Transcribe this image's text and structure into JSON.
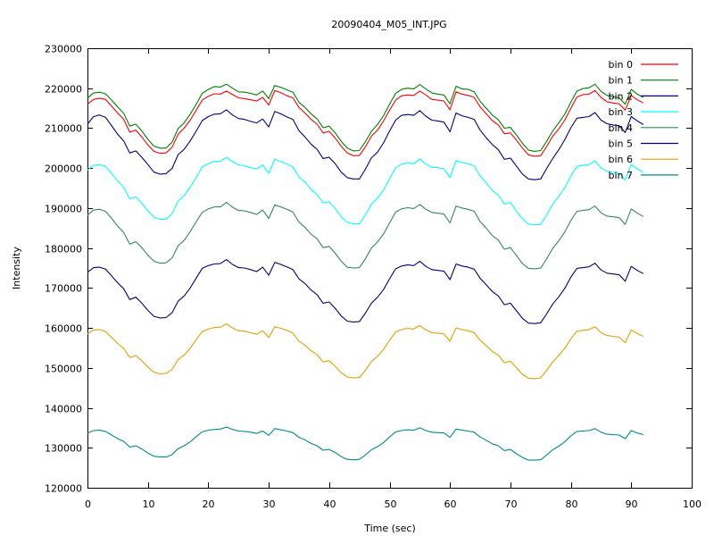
{
  "chart_data": {
    "type": "line",
    "title": "20090404_M05_INT.JPG",
    "xlabel": "Time (sec)",
    "ylabel": "Intensity",
    "xlim": [
      0,
      100
    ],
    "ylim": [
      120000,
      230000
    ],
    "xticks": [
      0,
      10,
      20,
      30,
      40,
      50,
      60,
      70,
      80,
      90,
      100
    ],
    "yticks": [
      120000,
      130000,
      140000,
      150000,
      160000,
      170000,
      180000,
      190000,
      200000,
      210000,
      220000,
      230000
    ],
    "grid": false,
    "legend_position": "top-right",
    "x": [
      0,
      1,
      2,
      3,
      4,
      5,
      6,
      7,
      8,
      9,
      10,
      11,
      12,
      13,
      14,
      15,
      16,
      17,
      18,
      19,
      20,
      21,
      22,
      23,
      24,
      25,
      26,
      27,
      28,
      29,
      30,
      31,
      32,
      33,
      34,
      35,
      36,
      37,
      38,
      39,
      40,
      41,
      42,
      43,
      44,
      45,
      46,
      47,
      48,
      49,
      50,
      51,
      52,
      53,
      54,
      55,
      56,
      57,
      58,
      59,
      60,
      61,
      62,
      63,
      64,
      65,
      66,
      67,
      68,
      69,
      70,
      71,
      72,
      73,
      74,
      75,
      76,
      77,
      78,
      79,
      80,
      81,
      82,
      83,
      84,
      85,
      86,
      87,
      88,
      89,
      90,
      91,
      92
    ],
    "series": [
      {
        "name": "bin 0",
        "color": "#ff0000",
        "values": [
          216000,
          217200,
          217500,
          217200,
          215500,
          213800,
          212200,
          209000,
          209500,
          207800,
          205800,
          204200,
          203700,
          203800,
          205200,
          208500,
          210000,
          212000,
          214500,
          217000,
          218000,
          218600,
          218500,
          219300,
          218400,
          217600,
          217400,
          217100,
          216800,
          217700,
          215800,
          219400,
          218900,
          218100,
          217600,
          215200,
          213800,
          212200,
          211000,
          208800,
          209200,
          207500,
          205500,
          203800,
          203100,
          203200,
          205300,
          208000,
          209500,
          211800,
          214500,
          217000,
          218100,
          218300,
          218200,
          219300,
          218300,
          217200,
          217000,
          216800,
          214600,
          219100,
          218500,
          218200,
          217700,
          215300,
          213600,
          211900,
          210800,
          208600,
          208800,
          207000,
          205000,
          203300,
          203000,
          203100,
          205400,
          208000,
          209800,
          212000,
          215000,
          217800,
          218400,
          218500,
          219400,
          217700,
          216600,
          216300,
          216100,
          214500,
          218200,
          217100,
          216300
        ]
      },
      {
        "name": "bin 1",
        "color": "#008000",
        "values": [
          217500,
          218800,
          219000,
          218600,
          217000,
          215300,
          213700,
          210500,
          211000,
          209300,
          207200,
          205500,
          205000,
          205000,
          206500,
          209900,
          211300,
          213500,
          216000,
          218700,
          219700,
          220400,
          220300,
          221000,
          220000,
          219100,
          219000,
          218700,
          218300,
          219300,
          217400,
          220700,
          220200,
          219600,
          219000,
          216500,
          215200,
          213600,
          212300,
          210100,
          210500,
          208800,
          206700,
          205000,
          204300,
          204400,
          206600,
          209200,
          210900,
          213100,
          216000,
          218700,
          219700,
          220000,
          219800,
          220900,
          219800,
          218800,
          218500,
          218300,
          216100,
          220500,
          219800,
          219700,
          219100,
          216700,
          215000,
          213300,
          212100,
          210000,
          210200,
          208300,
          206200,
          204500,
          204200,
          204400,
          206700,
          209300,
          211300,
          213500,
          216500,
          219300,
          219900,
          220100,
          221000,
          219200,
          218200,
          217800,
          217600,
          216000,
          219700,
          218500,
          217700
        ]
      },
      {
        "name": "bin 2",
        "color": "#00008b",
        "values": [
          211000,
          212900,
          213300,
          212700,
          210600,
          208500,
          206800,
          203800,
          204300,
          202700,
          200900,
          199000,
          198500,
          198600,
          199900,
          203400,
          204700,
          206800,
          209300,
          211900,
          212900,
          213500,
          213600,
          214600,
          213300,
          212400,
          212200,
          211700,
          211300,
          212300,
          210300,
          214200,
          213600,
          212800,
          212200,
          209400,
          207800,
          206000,
          204700,
          202400,
          202700,
          201100,
          199000,
          197600,
          197300,
          197300,
          199700,
          202600,
          204000,
          206300,
          209300,
          212000,
          213200,
          213400,
          213200,
          214400,
          213000,
          212000,
          211800,
          211500,
          209100,
          213800,
          213100,
          212700,
          212200,
          209500,
          207600,
          205900,
          204600,
          202200,
          202500,
          200500,
          198500,
          197300,
          197100,
          197300,
          199900,
          202400,
          204600,
          207100,
          210100,
          212500,
          212700,
          212900,
          213900,
          212000,
          211100,
          210800,
          210600,
          208900,
          212900,
          211800,
          210900
        ]
      },
      {
        "name": "bin 3",
        "color": "#00ffff",
        "values": [
          199500,
          200700,
          200900,
          200400,
          198600,
          196800,
          195200,
          192300,
          192800,
          191200,
          189300,
          187700,
          187200,
          187200,
          188600,
          191800,
          193100,
          195200,
          197700,
          200300,
          201100,
          201700,
          201700,
          202700,
          201600,
          200800,
          200600,
          200100,
          199800,
          200800,
          198700,
          202200,
          201600,
          201000,
          200300,
          197800,
          196500,
          194700,
          193400,
          191300,
          191600,
          189900,
          187800,
          186400,
          186100,
          186100,
          188300,
          191000,
          192500,
          194500,
          197300,
          200100,
          201000,
          201400,
          201100,
          202300,
          201000,
          200200,
          200100,
          199800,
          197600,
          201900,
          201400,
          201100,
          200600,
          198000,
          196300,
          194400,
          193200,
          191000,
          191400,
          189200,
          187300,
          186000,
          185800,
          185900,
          188300,
          191000,
          192900,
          195100,
          198000,
          200400,
          200700,
          200900,
          201800,
          200000,
          199200,
          198900,
          198700,
          197000,
          200900,
          199800,
          199000
        ]
      },
      {
        "name": "bin 4",
        "color": "#2e8b57",
        "values": [
          188200,
          189500,
          189700,
          189200,
          187400,
          185500,
          183900,
          181000,
          181600,
          180100,
          178200,
          176700,
          176200,
          176300,
          177500,
          180600,
          181900,
          184100,
          186600,
          188900,
          189800,
          190300,
          190300,
          191400,
          190200,
          189400,
          189300,
          188900,
          188400,
          189500,
          187400,
          190800,
          190300,
          189700,
          189000,
          186500,
          185200,
          183500,
          182300,
          180100,
          180400,
          178700,
          176700,
          175200,
          175000,
          175100,
          177300,
          180000,
          181500,
          183500,
          186300,
          189000,
          189800,
          190100,
          189900,
          190900,
          189700,
          188900,
          188700,
          188500,
          186300,
          190500,
          190000,
          189700,
          189200,
          186600,
          185000,
          183100,
          182000,
          179700,
          180100,
          178100,
          176100,
          174900,
          174800,
          175000,
          177300,
          179900,
          181800,
          184000,
          186900,
          189200,
          189400,
          189600,
          190500,
          188800,
          188000,
          187800,
          187600,
          185900,
          189800,
          188700,
          187900
        ]
      },
      {
        "name": "bin 5",
        "color": "#000080",
        "values": [
          173900,
          175100,
          175200,
          174700,
          173000,
          171300,
          169800,
          167100,
          167700,
          166200,
          164400,
          162900,
          162500,
          162600,
          163800,
          166700,
          168000,
          170000,
          172500,
          174900,
          175600,
          176000,
          176100,
          177100,
          175900,
          175100,
          175000,
          174600,
          174100,
          175200,
          173200,
          176400,
          175900,
          175300,
          174600,
          172300,
          171100,
          169500,
          168300,
          166200,
          166500,
          164900,
          163000,
          161700,
          161500,
          161600,
          163700,
          166200,
          167700,
          169600,
          172300,
          174800,
          175500,
          175800,
          175600,
          176700,
          175400,
          174600,
          174400,
          174200,
          172100,
          176000,
          175500,
          175200,
          174700,
          172400,
          170800,
          169100,
          168000,
          165800,
          166200,
          164300,
          162400,
          161200,
          161100,
          161300,
          163500,
          166000,
          167800,
          169900,
          172700,
          174900,
          175100,
          175300,
          176200,
          174500,
          173700,
          173500,
          173300,
          171700,
          175400,
          174400,
          173600
        ]
      },
      {
        "name": "bin 6",
        "color": "#e69f00",
        "values": [
          158500,
          159500,
          159600,
          159100,
          157600,
          156100,
          154900,
          152600,
          153100,
          151800,
          150200,
          148900,
          148500,
          148600,
          149600,
          152100,
          153200,
          154900,
          157100,
          159100,
          159700,
          160100,
          160200,
          161000,
          160000,
          159300,
          159200,
          158800,
          158400,
          159300,
          157600,
          160300,
          159900,
          159400,
          158700,
          156700,
          155700,
          154300,
          153300,
          151500,
          151800,
          150400,
          148800,
          147700,
          147500,
          147600,
          149400,
          151600,
          152900,
          154600,
          156900,
          159000,
          159600,
          159900,
          159700,
          160600,
          159500,
          158800,
          158700,
          158500,
          156700,
          160000,
          159600,
          159300,
          158800,
          156900,
          155600,
          154100,
          153200,
          151300,
          151700,
          150000,
          148400,
          147400,
          147300,
          147500,
          149400,
          151500,
          153100,
          154900,
          157300,
          159200,
          159400,
          159600,
          160300,
          158800,
          158100,
          157900,
          157700,
          156300,
          159500,
          158600,
          157900
        ]
      },
      {
        "name": "bin 7",
        "color": "#008b8b",
        "values": [
          133700,
          134300,
          134400,
          134100,
          133200,
          132300,
          131600,
          130200,
          130500,
          129700,
          128700,
          127900,
          127700,
          127700,
          128300,
          129800,
          130500,
          131500,
          132800,
          134000,
          134400,
          134600,
          134700,
          135200,
          134600,
          134200,
          134100,
          133900,
          133600,
          134200,
          133100,
          134800,
          134500,
          134200,
          133800,
          132600,
          132000,
          131100,
          130500,
          129400,
          129600,
          128800,
          127800,
          127100,
          127000,
          127100,
          128200,
          129500,
          130300,
          131300,
          132700,
          134000,
          134300,
          134500,
          134400,
          135000,
          134300,
          133900,
          133800,
          133700,
          132600,
          134700,
          134400,
          134200,
          133900,
          132700,
          131900,
          131000,
          130500,
          129300,
          129600,
          128500,
          127600,
          126900,
          126900,
          127000,
          128200,
          129500,
          130400,
          131500,
          133000,
          134100,
          134200,
          134300,
          134800,
          133900,
          133400,
          133300,
          133200,
          132300,
          134300,
          133700,
          133300
        ]
      }
    ]
  }
}
